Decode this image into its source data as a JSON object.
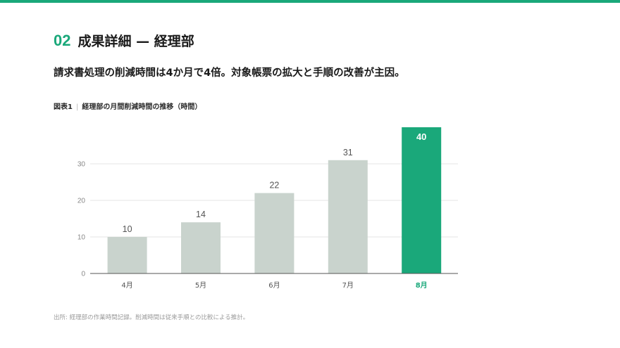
{
  "section": {
    "number": "02",
    "title": "成果詳細 — 経理部"
  },
  "lead": "請求書処理の削減時間は4か月で4倍。対象帳票の拡大と手順の改善が主因。",
  "figure": {
    "label": "図表1",
    "caption": "経理部の月間削減時間の推移（時間）"
  },
  "source": "出所: 経理部の作業時間記録。削減時間は従来手順との比較による推計。",
  "colors": {
    "accent": "#1aa87a",
    "bar_default": "#c9d3cd",
    "axis": "#555555",
    "grid": "#e6e6e6",
    "tick_text": "#888888",
    "value_text": "#555555"
  },
  "chart_data": {
    "type": "bar",
    "categories": [
      "4月",
      "5月",
      "6月",
      "7月",
      "8月"
    ],
    "values": [
      10,
      14,
      22,
      31,
      40
    ],
    "highlight_index": 4,
    "yticks": [
      0,
      10,
      20,
      30
    ],
    "ylim": [
      0,
      40
    ],
    "grid": true,
    "title": "",
    "xlabel": "",
    "ylabel": ""
  }
}
